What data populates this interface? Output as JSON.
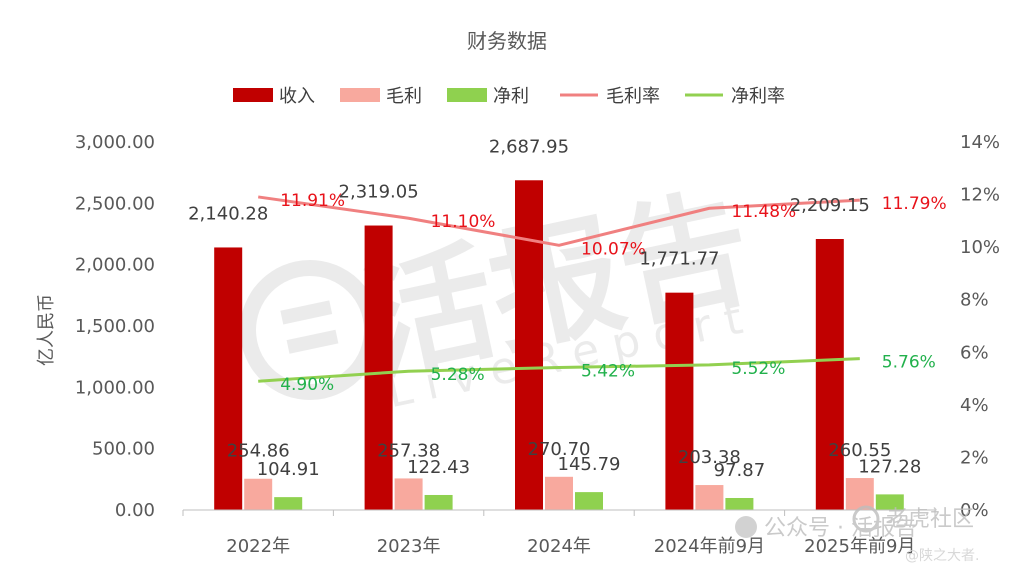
{
  "chart_data": {
    "type": "bar",
    "title": "财务数据",
    "ylabel": "亿人民币",
    "y2label": "",
    "categories": [
      "2022年",
      "2023年",
      "2024年",
      "2024年前9月",
      "2025年前9月"
    ],
    "ylim": [
      0,
      3000
    ],
    "y_ticks": [
      "0.00",
      "500.00",
      "1,000.00",
      "1,500.00",
      "2,000.00",
      "2,500.00",
      "3,000.00"
    ],
    "y2lim": [
      0,
      14
    ],
    "y2_ticks": [
      "0%",
      "2%",
      "4%",
      "6%",
      "8%",
      "10%",
      "12%",
      "14%"
    ],
    "legend_position": "top",
    "grid": false,
    "series": [
      {
        "name": "收入",
        "kind": "bar",
        "axis": "left",
        "color": "#c00000",
        "values": [
          2140.28,
          2319.05,
          2687.95,
          1771.77,
          2209.15
        ],
        "labels": [
          "2,140.28",
          "2,319.05",
          "2,687.95",
          "1,771.77",
          "2,209.15"
        ]
      },
      {
        "name": "毛利",
        "kind": "bar",
        "axis": "left",
        "color": "#f8a99e",
        "values": [
          254.86,
          257.38,
          270.7,
          203.38,
          260.55
        ],
        "labels": [
          "254.86",
          "257.38",
          "270.70",
          "203.38",
          "260.55"
        ]
      },
      {
        "name": "净利",
        "kind": "bar",
        "axis": "left",
        "color": "#8fd14f",
        "values": [
          104.91,
          122.43,
          145.79,
          97.87,
          127.28
        ],
        "labels": [
          "104.91",
          "122.43",
          "145.79",
          "97.87",
          "127.28"
        ]
      },
      {
        "name": "毛利率",
        "kind": "line",
        "axis": "right",
        "color": "#f08080",
        "values": [
          11.91,
          11.1,
          10.07,
          11.48,
          11.79
        ],
        "labels": [
          "11.91%",
          "11.10%",
          "10.07%",
          "11.48%",
          "11.79%"
        ]
      },
      {
        "name": "净利率",
        "kind": "line",
        "axis": "right",
        "color": "#92d050",
        "values": [
          4.9,
          5.28,
          5.42,
          5.52,
          5.76
        ],
        "labels": [
          "4.90%",
          "5.28%",
          "5.42%",
          "5.52%",
          "5.76%"
        ]
      }
    ]
  },
  "watermark": {
    "main": "活报告",
    "sub": "LiveReport",
    "wechat": "公众号 · 活报告",
    "corner": "老虎社区",
    "corner_user": "@陕之大者."
  }
}
